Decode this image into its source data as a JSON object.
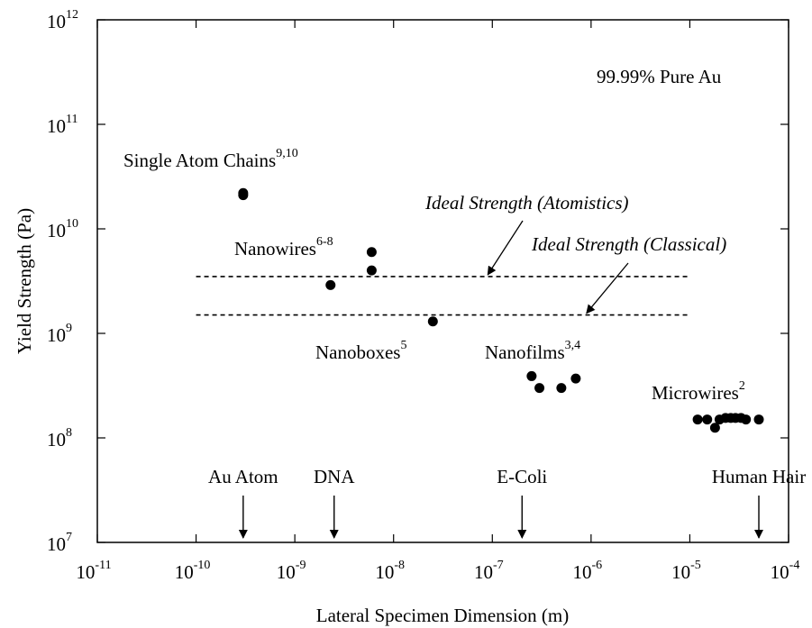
{
  "chart_data": {
    "type": "scatter",
    "xscale": "log",
    "yscale": "log",
    "xlim": [
      1e-11,
      0.0001
    ],
    "ylim": [
      10000000.0,
      1000000000000.0
    ],
    "xlabel": "Lateral Specimen Dimension (m)",
    "ylabel": "Yield Strength (Pa)",
    "grid": false,
    "x_ticks": [
      {
        "base": "10",
        "exp": "-11"
      },
      {
        "base": "10",
        "exp": "-10"
      },
      {
        "base": "10",
        "exp": "-9"
      },
      {
        "base": "10",
        "exp": "-8"
      },
      {
        "base": "10",
        "exp": "-7"
      },
      {
        "base": "10",
        "exp": "-6"
      },
      {
        "base": "10",
        "exp": "-5"
      },
      {
        "base": "10",
        "exp": "-4"
      }
    ],
    "y_ticks": [
      {
        "base": "10",
        "exp": "7"
      },
      {
        "base": "10",
        "exp": "8"
      },
      {
        "base": "10",
        "exp": "9"
      },
      {
        "base": "10",
        "exp": "10"
      },
      {
        "base": "10",
        "exp": "11"
      },
      {
        "base": "10",
        "exp": "12"
      }
    ],
    "note": "99.99% Pure Au",
    "groups": [
      {
        "name": "Single Atom Chains",
        "ref": "9,10",
        "points": [
          [
            3e-10,
            22000000000.0
          ],
          [
            3e-10,
            21000000000.0
          ]
        ]
      },
      {
        "name": "Nanowires",
        "ref": "6-8",
        "points": [
          [
            6e-09,
            6000000000.0
          ],
          [
            6e-09,
            4000000000.0
          ],
          [
            2.3e-09,
            2900000000.0
          ]
        ]
      },
      {
        "name": "Nanoboxes",
        "ref": "5",
        "points": [
          [
            2.5e-08,
            1300000000.0
          ]
        ]
      },
      {
        "name": "Nanofilms",
        "ref": "3,4",
        "points": [
          [
            2.5e-07,
            390000000.0
          ],
          [
            3e-07,
            300000000.0
          ],
          [
            5e-07,
            300000000.0
          ],
          [
            7e-07,
            370000000.0
          ]
        ]
      },
      {
        "name": "Microwires",
        "ref": "2",
        "points": [
          [
            1.2e-05,
            150000000.0
          ],
          [
            1.5e-05,
            150000000.0
          ],
          [
            1.8e-05,
            125000000.0
          ],
          [
            2e-05,
            150000000.0
          ],
          [
            2.3e-05,
            155000000.0
          ],
          [
            2.6e-05,
            155000000.0
          ],
          [
            2.9e-05,
            155000000.0
          ],
          [
            3.3e-05,
            155000000.0
          ],
          [
            3.7e-05,
            150000000.0
          ],
          [
            5e-05,
            150000000.0
          ]
        ]
      }
    ],
    "reference_lines": [
      {
        "label": "Ideal Strength (Atomistics)",
        "y": 3500000000.0,
        "x_range": [
          1e-10,
          1e-05
        ],
        "arrow_to_x": 9e-08
      },
      {
        "label": "Ideal Strength (Classical)",
        "y": 1500000000.0,
        "x_range": [
          1e-10,
          1e-05
        ],
        "arrow_to_x": 9e-07
      }
    ],
    "size_markers": [
      {
        "label": "Au Atom",
        "x": 3e-10
      },
      {
        "label": "DNA",
        "x": 2.5e-09
      },
      {
        "label": "E-Coli",
        "x": 2e-07
      },
      {
        "label": "Human Hair",
        "x": 5e-05
      }
    ]
  }
}
